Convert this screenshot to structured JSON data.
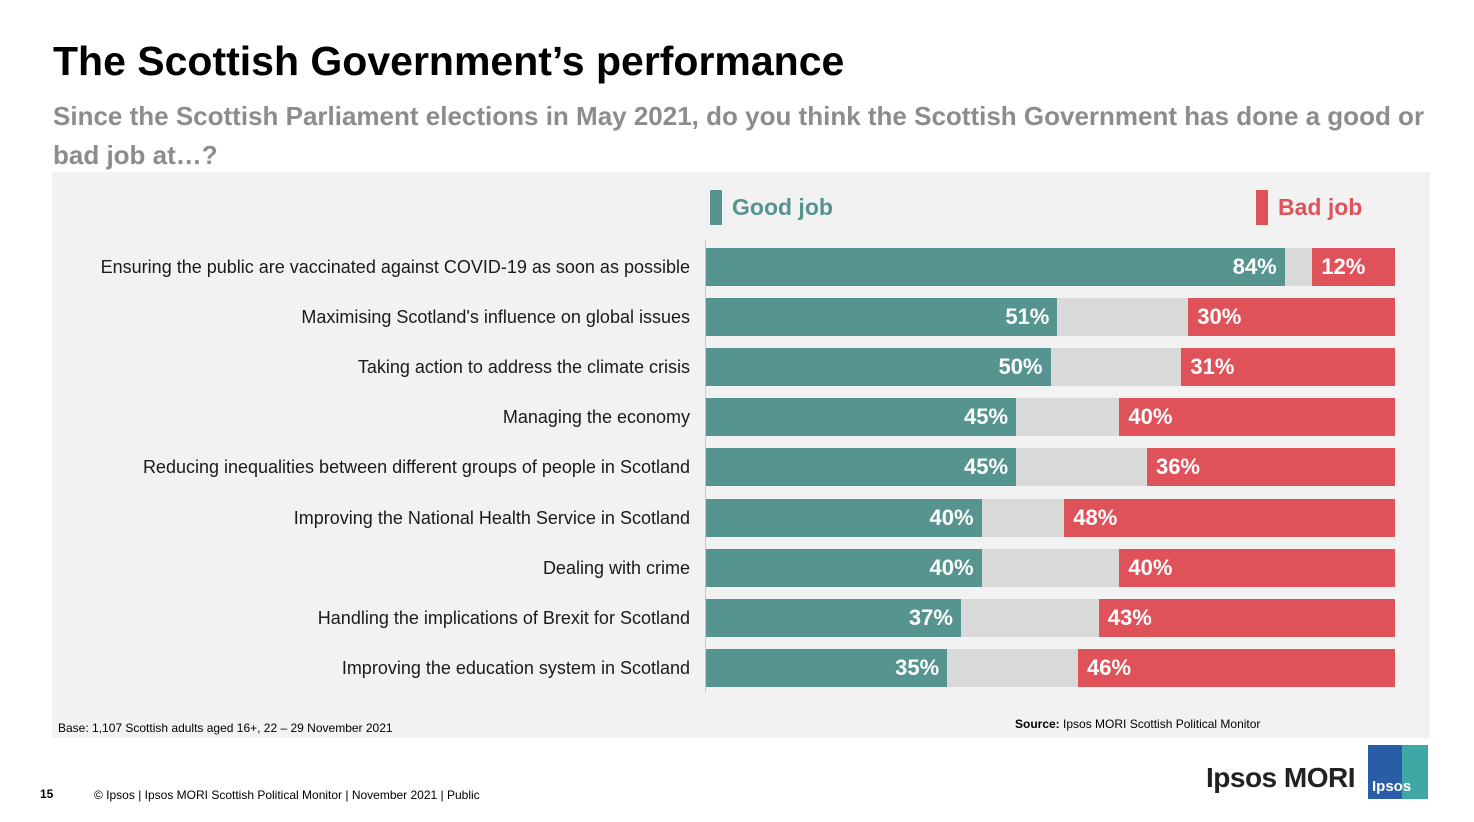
{
  "header": {
    "title": "The Scottish Government’s performance",
    "subtitle": "Since the Scottish Parliament elections in May 2021, do you think the Scottish Government has done a good or bad job at…?"
  },
  "colors": {
    "good": "#55948f",
    "bad": "#e0525a",
    "neutral": "#d9d9d9"
  },
  "chart_data": {
    "type": "bar",
    "orientation": "horizontal",
    "stacked": true,
    "legend": [
      "Good job",
      "Bad job"
    ],
    "categories": [
      "Ensuring the public are vaccinated against COVID-19 as soon as possible",
      "Maximising Scotland's influence on global issues",
      "Taking action to address the climate crisis",
      "Managing the economy",
      "Reducing inequalities between different groups of people in Scotland",
      "Improving the National Health Service in Scotland",
      "Dealing with crime",
      "Handling the implications of Brexit for Scotland",
      "Improving the education system in Scotland"
    ],
    "series": [
      {
        "name": "Good job",
        "values": [
          84,
          51,
          50,
          45,
          45,
          40,
          40,
          37,
          35
        ],
        "labels": [
          "84%",
          "51%",
          "50%",
          "45%",
          "45%",
          "40%",
          "40%",
          "37%",
          "35%"
        ]
      },
      {
        "name": "Bad job",
        "values": [
          12,
          30,
          31,
          40,
          36,
          48,
          40,
          43,
          46
        ],
        "labels": [
          "12%",
          "30%",
          "31%",
          "40%",
          "36%",
          "48%",
          "40%",
          "43%",
          "46%"
        ]
      }
    ],
    "xlim": [
      0,
      100
    ]
  },
  "notes": {
    "base": "Base: 1,107 Scottish adults aged 16+, 22 – 29 November 2021",
    "source_label": "Source:",
    "source_text": "Ipsos MORI Scottish Political Monitor"
  },
  "footer": {
    "page_number": "15",
    "text": "© Ipsos | Ipsos MORI Scottish Political Monitor | November  2021 | Public"
  },
  "logo": {
    "wordmark": "Ipsos MORI",
    "badge": "Ipsos"
  }
}
